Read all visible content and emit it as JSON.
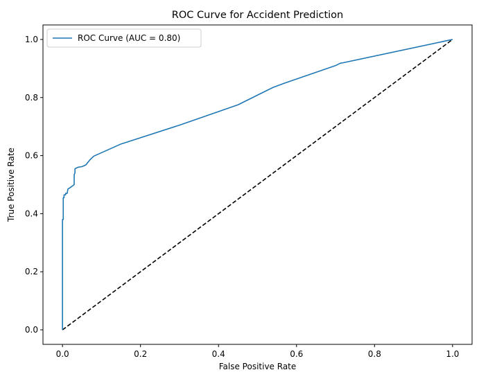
{
  "chart_data": {
    "type": "line",
    "title": "ROC Curve for Accident Prediction",
    "xlabel": "False Positive Rate",
    "ylabel": "True Positive Rate",
    "xlim": [
      -0.05,
      1.05
    ],
    "ylim": [
      -0.05,
      1.05
    ],
    "xticks": [
      "0.0",
      "0.2",
      "0.4",
      "0.6",
      "0.8",
      "1.0"
    ],
    "yticks": [
      "0.0",
      "0.2",
      "0.4",
      "0.6",
      "0.8",
      "1.0"
    ],
    "grid": false,
    "legend": {
      "position": "top-left",
      "entries": [
        "ROC Curve (AUC = 0.80)"
      ]
    },
    "series": [
      {
        "name": "ROC Curve (AUC = 0.80)",
        "color": "#1f77b4",
        "style": "solid",
        "x": [
          0.0,
          0.0,
          0.002,
          0.002,
          0.004,
          0.004,
          0.008,
          0.008,
          0.012,
          0.014,
          0.02,
          0.03,
          0.03,
          0.032,
          0.032,
          0.04,
          0.05,
          0.06,
          0.07,
          0.08,
          0.15,
          0.3,
          0.45,
          0.54,
          0.57,
          0.7,
          0.712,
          0.72,
          1.0
        ],
        "y": [
          0.0,
          0.38,
          0.38,
          0.455,
          0.455,
          0.465,
          0.465,
          0.47,
          0.47,
          0.485,
          0.49,
          0.5,
          0.535,
          0.54,
          0.555,
          0.56,
          0.562,
          0.568,
          0.585,
          0.598,
          0.64,
          0.705,
          0.775,
          0.835,
          0.85,
          0.91,
          0.918,
          0.92,
          1.0
        ]
      },
      {
        "name": "",
        "color": "#000000",
        "style": "dashed",
        "x": [
          0,
          1
        ],
        "y": [
          0,
          1
        ]
      }
    ]
  }
}
